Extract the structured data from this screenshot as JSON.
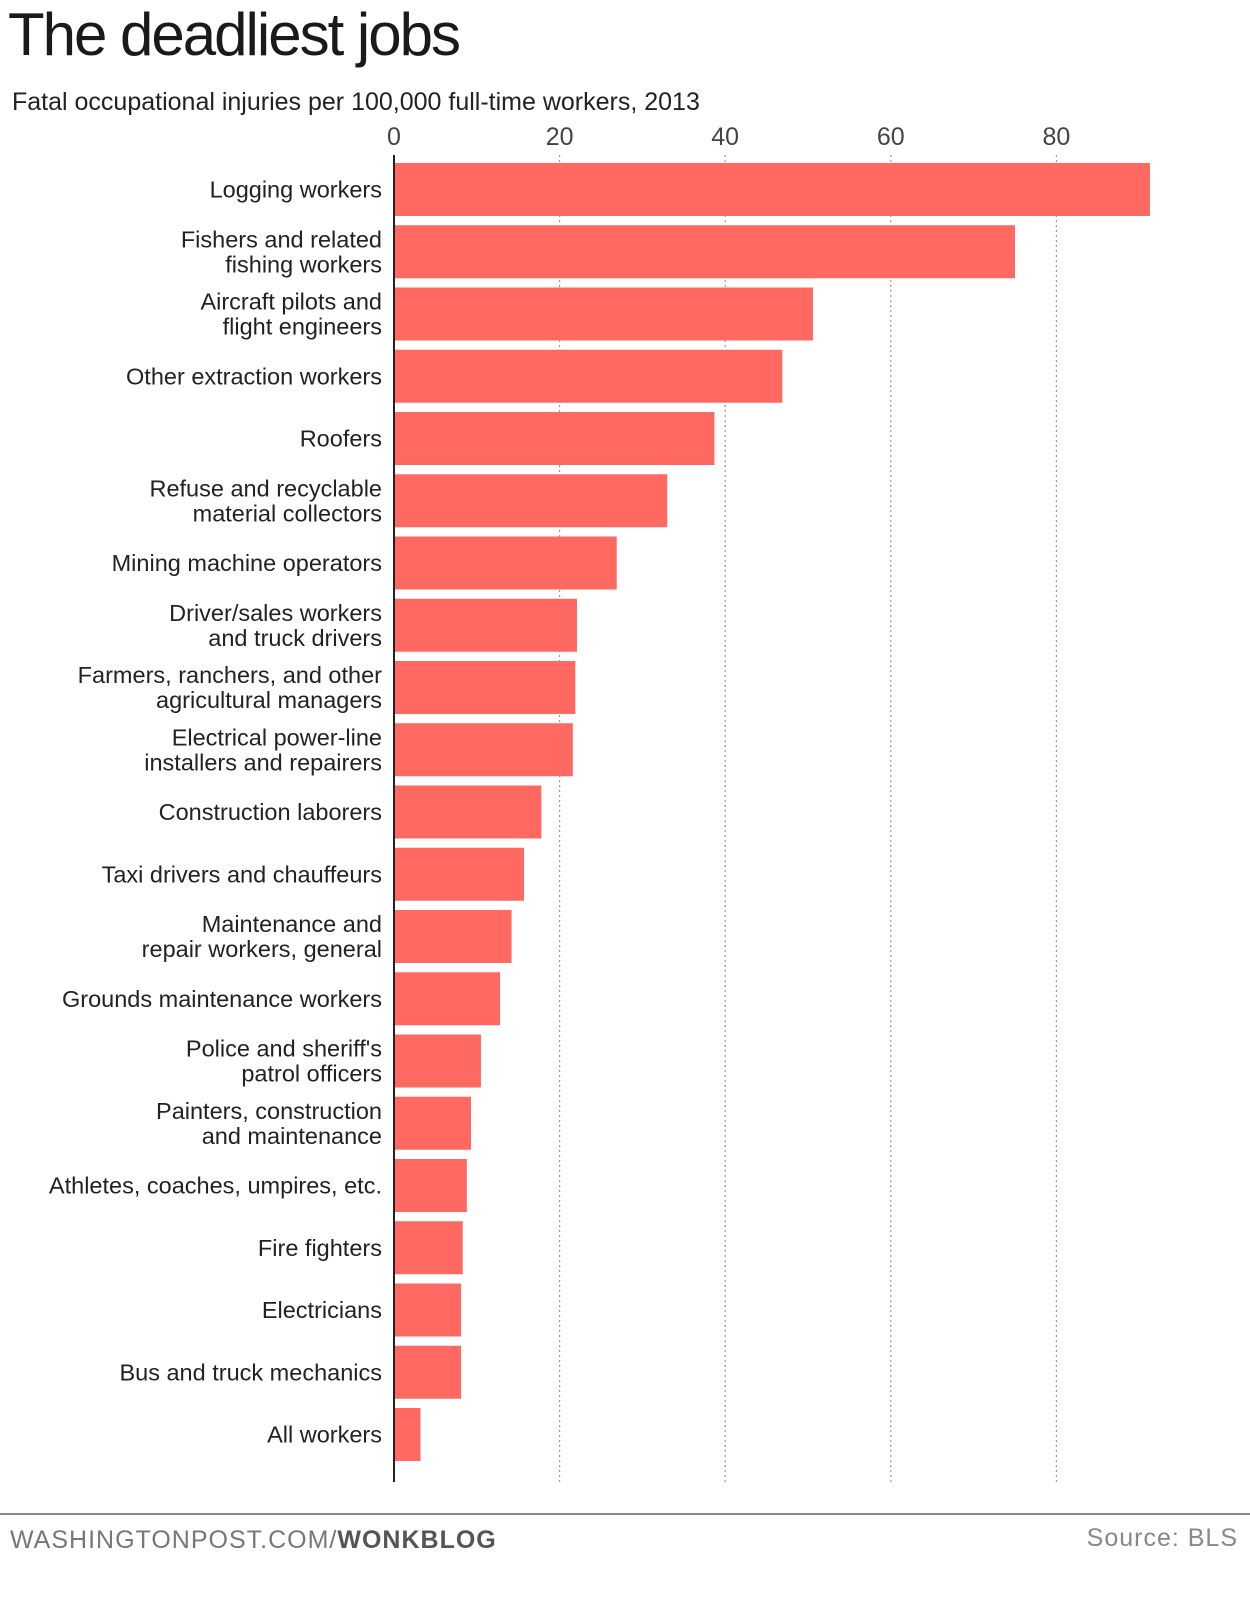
{
  "chart_data": {
    "type": "bar",
    "orientation": "horizontal",
    "title": "The deadliest jobs",
    "subtitle": "Fatal occupational injuries per 100,000 full-time workers, 2013",
    "xlim": [
      0,
      92
    ],
    "xticks": [
      0,
      20,
      40,
      60,
      80
    ],
    "grid": true,
    "bar_color": "#ff6961",
    "categories": [
      [
        "Logging workers"
      ],
      [
        "Fishers and related",
        "fishing workers"
      ],
      [
        "Aircraft pilots and",
        "flight engineers"
      ],
      [
        "Other extraction workers"
      ],
      [
        "Roofers"
      ],
      [
        "Refuse and recyclable",
        "material collectors"
      ],
      [
        "Mining machine operators"
      ],
      [
        "Driver/sales workers",
        "and truck drivers"
      ],
      [
        "Farmers, ranchers, and other",
        "agricultural managers"
      ],
      [
        "Electrical power-line",
        "installers and repairers"
      ],
      [
        "Construction laborers"
      ],
      [
        "Taxi drivers and chauffeurs"
      ],
      [
        "Maintenance and",
        "repair workers, general"
      ],
      [
        "Grounds maintenance workers"
      ],
      [
        "Police and sheriff's",
        "patrol officers"
      ],
      [
        "Painters, construction",
        "and maintenance"
      ],
      [
        "Athletes, coaches, umpires, etc."
      ],
      [
        "Fire fighters"
      ],
      [
        "Electricians"
      ],
      [
        "Bus and truck mechanics"
      ],
      [
        "All workers"
      ]
    ],
    "values": [
      91.3,
      75.0,
      50.6,
      46.9,
      38.7,
      33.0,
      26.9,
      22.1,
      21.9,
      21.6,
      17.8,
      15.7,
      14.2,
      12.8,
      10.5,
      9.3,
      8.8,
      8.3,
      8.1,
      8.1,
      3.2
    ]
  },
  "footer": {
    "site": "WASHINGTONPOST.COM/",
    "section": "WONKBLOG",
    "source": "Source: BLS"
  }
}
